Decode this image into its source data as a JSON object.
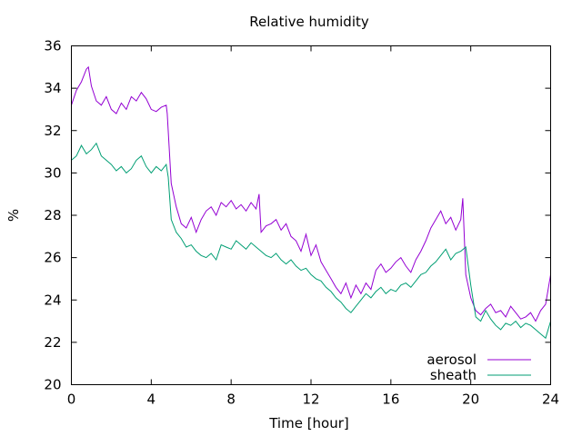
{
  "chart_data": {
    "type": "line",
    "title": "Relative humidity",
    "xlabel": "Time [hour]",
    "ylabel": "%",
    "xlim": [
      0,
      24
    ],
    "ylim": [
      20,
      36
    ],
    "xticks": [
      "0",
      "4",
      "8",
      "12",
      "16",
      "20",
      "24"
    ],
    "yticks": [
      "20",
      "22",
      "24",
      "26",
      "28",
      "30",
      "32",
      "34",
      "36"
    ],
    "grid": false,
    "legend_position": "bottom-right",
    "series": [
      {
        "name": "aerosol",
        "color": "#9400d3",
        "x": [
          0,
          0.25,
          0.5,
          0.75,
          0.85,
          1.0,
          1.25,
          1.5,
          1.75,
          2.0,
          2.25,
          2.5,
          2.75,
          3.0,
          3.25,
          3.5,
          3.75,
          4.0,
          4.25,
          4.5,
          4.75,
          4.8,
          5.0,
          5.25,
          5.5,
          5.75,
          6.0,
          6.25,
          6.5,
          6.75,
          7.0,
          7.25,
          7.5,
          7.75,
          8.0,
          8.25,
          8.5,
          8.75,
          9.0,
          9.25,
          9.4,
          9.5,
          9.75,
          10.0,
          10.25,
          10.5,
          10.75,
          11.0,
          11.25,
          11.5,
          11.75,
          12.0,
          12.25,
          12.5,
          12.75,
          13.0,
          13.25,
          13.5,
          13.75,
          14.0,
          14.25,
          14.5,
          14.75,
          15.0,
          15.25,
          15.5,
          15.75,
          16.0,
          16.25,
          16.5,
          16.75,
          17.0,
          17.25,
          17.5,
          17.75,
          18.0,
          18.25,
          18.5,
          18.75,
          19.0,
          19.25,
          19.5,
          19.6,
          19.75,
          20.0,
          20.25,
          20.5,
          20.75,
          21.0,
          21.25,
          21.5,
          21.75,
          22.0,
          22.25,
          22.5,
          22.75,
          23.0,
          23.25,
          23.5,
          23.75,
          24.0
        ],
        "values": [
          33.2,
          33.9,
          34.3,
          34.9,
          35.0,
          34.1,
          33.4,
          33.2,
          33.6,
          33.0,
          32.8,
          33.3,
          33.0,
          33.6,
          33.4,
          33.8,
          33.5,
          33.0,
          32.9,
          33.1,
          33.2,
          32.8,
          29.5,
          28.4,
          27.6,
          27.4,
          27.9,
          27.2,
          27.8,
          28.2,
          28.4,
          28.0,
          28.6,
          28.4,
          28.7,
          28.3,
          28.5,
          28.2,
          28.6,
          28.3,
          29.0,
          27.2,
          27.5,
          27.6,
          27.8,
          27.3,
          27.6,
          27.0,
          26.8,
          26.3,
          27.1,
          26.1,
          26.6,
          25.8,
          25.4,
          25.0,
          24.6,
          24.3,
          24.8,
          24.1,
          24.7,
          24.3,
          24.8,
          24.5,
          25.4,
          25.7,
          25.3,
          25.5,
          25.8,
          26.0,
          25.6,
          25.3,
          25.9,
          26.3,
          26.8,
          27.4,
          27.8,
          28.2,
          27.6,
          27.9,
          27.3,
          27.8,
          28.8,
          25.2,
          24.1,
          23.5,
          23.3,
          23.6,
          23.8,
          23.4,
          23.5,
          23.2,
          23.7,
          23.4,
          23.1,
          23.2,
          23.4,
          23.0,
          23.5,
          23.8,
          25.2
        ]
      },
      {
        "name": "sheath",
        "color": "#009e73",
        "x": [
          0,
          0.25,
          0.5,
          0.75,
          1.0,
          1.25,
          1.5,
          1.75,
          2.0,
          2.25,
          2.5,
          2.75,
          3.0,
          3.25,
          3.5,
          3.75,
          4.0,
          4.25,
          4.5,
          4.75,
          4.85,
          5.0,
          5.25,
          5.5,
          5.75,
          6.0,
          6.25,
          6.5,
          6.75,
          7.0,
          7.25,
          7.5,
          7.75,
          8.0,
          8.25,
          8.5,
          8.75,
          9.0,
          9.25,
          9.5,
          9.75,
          10.0,
          10.25,
          10.5,
          10.75,
          11.0,
          11.25,
          11.5,
          11.75,
          12.0,
          12.25,
          12.5,
          12.75,
          13.0,
          13.25,
          13.5,
          13.75,
          14.0,
          14.25,
          14.5,
          14.75,
          15.0,
          15.25,
          15.5,
          15.75,
          16.0,
          16.25,
          16.5,
          16.75,
          17.0,
          17.25,
          17.5,
          17.75,
          18.0,
          18.25,
          18.5,
          18.75,
          19.0,
          19.25,
          19.5,
          19.75,
          20.0,
          20.25,
          20.5,
          20.75,
          21.0,
          21.25,
          21.5,
          21.75,
          22.0,
          22.25,
          22.5,
          22.75,
          23.0,
          23.25,
          23.5,
          23.75,
          24.0
        ],
        "values": [
          30.6,
          30.8,
          31.3,
          30.9,
          31.1,
          31.4,
          30.8,
          30.6,
          30.4,
          30.1,
          30.3,
          30.0,
          30.2,
          30.6,
          30.8,
          30.3,
          30.0,
          30.3,
          30.1,
          30.4,
          29.8,
          27.8,
          27.2,
          26.9,
          26.5,
          26.6,
          26.3,
          26.1,
          26.0,
          26.2,
          25.9,
          26.6,
          26.5,
          26.4,
          26.8,
          26.6,
          26.4,
          26.7,
          26.5,
          26.3,
          26.1,
          26.0,
          26.2,
          25.9,
          25.7,
          25.9,
          25.6,
          25.4,
          25.5,
          25.2,
          25.0,
          24.9,
          24.6,
          24.4,
          24.1,
          23.9,
          23.6,
          23.4,
          23.7,
          24.0,
          24.3,
          24.1,
          24.4,
          24.6,
          24.3,
          24.5,
          24.4,
          24.7,
          24.8,
          24.6,
          24.9,
          25.2,
          25.3,
          25.6,
          25.8,
          26.1,
          26.4,
          25.9,
          26.2,
          26.3,
          26.5,
          24.7,
          23.2,
          23.0,
          23.5,
          23.1,
          22.8,
          22.6,
          22.9,
          22.8,
          23.0,
          22.7,
          22.9,
          22.8,
          22.6,
          22.4,
          22.2,
          23.0
        ]
      }
    ]
  }
}
